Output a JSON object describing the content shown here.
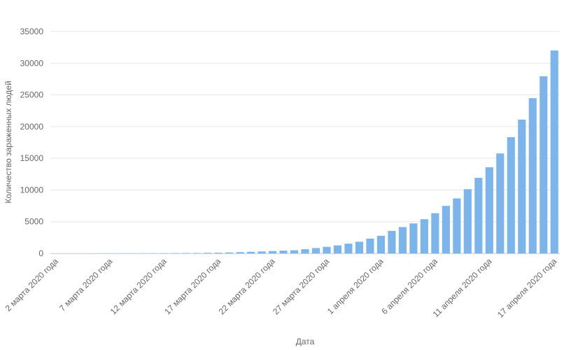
{
  "chart_data": {
    "type": "bar",
    "x_label": "Дата",
    "y_label": "Количество зараженных людей",
    "categories": [
      "2 марта 2020 года",
      null,
      null,
      null,
      null,
      "7 марта 2020 года",
      null,
      null,
      null,
      null,
      "12 марта 2020 года",
      null,
      null,
      null,
      null,
      "17 марта 2020 года",
      null,
      null,
      null,
      null,
      "22 марта 2020 года",
      null,
      null,
      null,
      null,
      "27 марта 2020 года",
      null,
      null,
      null,
      null,
      "1 апреля 2020 года",
      null,
      null,
      null,
      null,
      "6 апреля 2020 года",
      null,
      null,
      null,
      null,
      "11 апреля 2020 года",
      null,
      null,
      null,
      null,
      null,
      "17 апреля 2020 года"
    ],
    "values": [
      3,
      3,
      3,
      4,
      10,
      14,
      17,
      17,
      20,
      28,
      34,
      45,
      59,
      63,
      93,
      114,
      147,
      199,
      253,
      306,
      367,
      438,
      495,
      658,
      840,
      1036,
      1264,
      1534,
      1836,
      2337,
      2777,
      3548,
      4149,
      4731,
      5389,
      6343,
      7497,
      8672,
      10131,
      11917,
      13584,
      15770,
      18328,
      21102,
      24490,
      27938,
      32008
    ],
    "color": "#7cb5ec",
    "ylim": [
      0,
      35000
    ],
    "yticks": [
      0,
      5000,
      10000,
      15000,
      20000,
      25000,
      30000,
      35000
    ],
    "grid": true
  }
}
